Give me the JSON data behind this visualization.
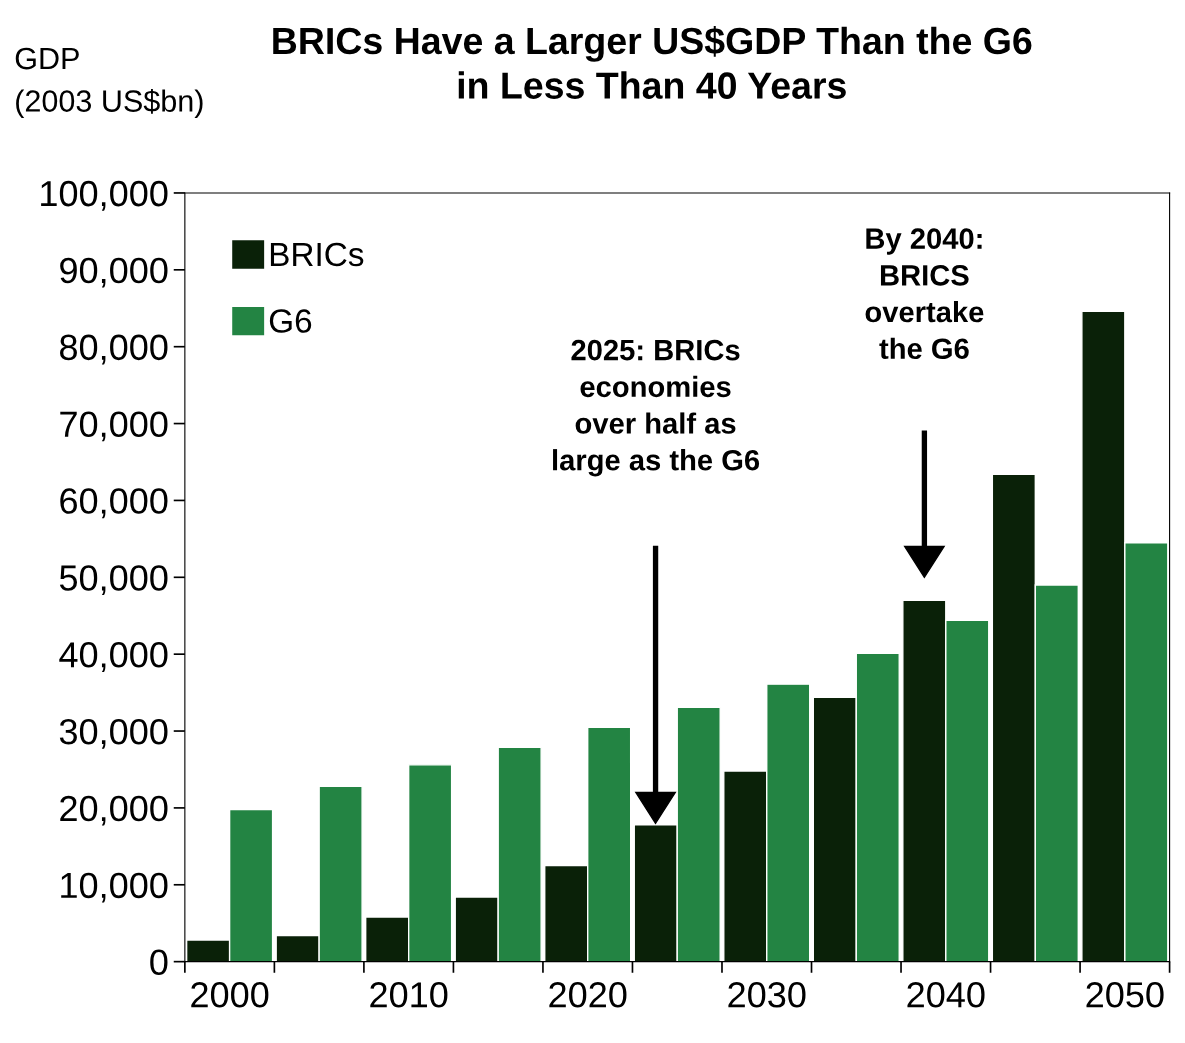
{
  "chart_data": {
    "type": "bar",
    "title": "BRICs Have a Larger US$GDP Than the G6\nin Less Than 40 Years",
    "ylabel": "GDP\n(2003 US$bn)",
    "categories": [
      "2000",
      null,
      "2010",
      null,
      "2020",
      null,
      "2030",
      null,
      "2040",
      null,
      "2050"
    ],
    "series": [
      {
        "name": "BRICs",
        "color": "#0a2108",
        "values": [
          2800,
          3400,
          5800,
          8400,
          12500,
          17800,
          24800,
          34400,
          47000,
          63400,
          84600
        ]
      },
      {
        "name": "G6",
        "color": "#238443",
        "values": [
          19800,
          22800,
          25600,
          27900,
          30500,
          33100,
          36100,
          40100,
          44400,
          49000,
          54500
        ]
      }
    ],
    "ylim": [
      0,
      100000
    ],
    "yticks": [
      {
        "value": 0,
        "label": "0"
      },
      {
        "value": 10000,
        "label": "10,000"
      },
      {
        "value": 20000,
        "label": "20,000"
      },
      {
        "value": 30000,
        "label": "30,000"
      },
      {
        "value": 40000,
        "label": "40,000"
      },
      {
        "value": 50000,
        "label": "50,000"
      },
      {
        "value": 60000,
        "label": "60,000"
      },
      {
        "value": 70000,
        "label": "70,000"
      },
      {
        "value": 80000,
        "label": "80,000"
      },
      {
        "value": 90000,
        "label": "90,000"
      },
      {
        "value": 100000,
        "label": "100,000"
      }
    ],
    "annotations": [
      "2025: BRICs\neconomies\nover half as\nlarge as the G6",
      "By 2040:\nBRICS\novertake\nthe G6"
    ],
    "legend": "top left",
    "grid": false
  }
}
